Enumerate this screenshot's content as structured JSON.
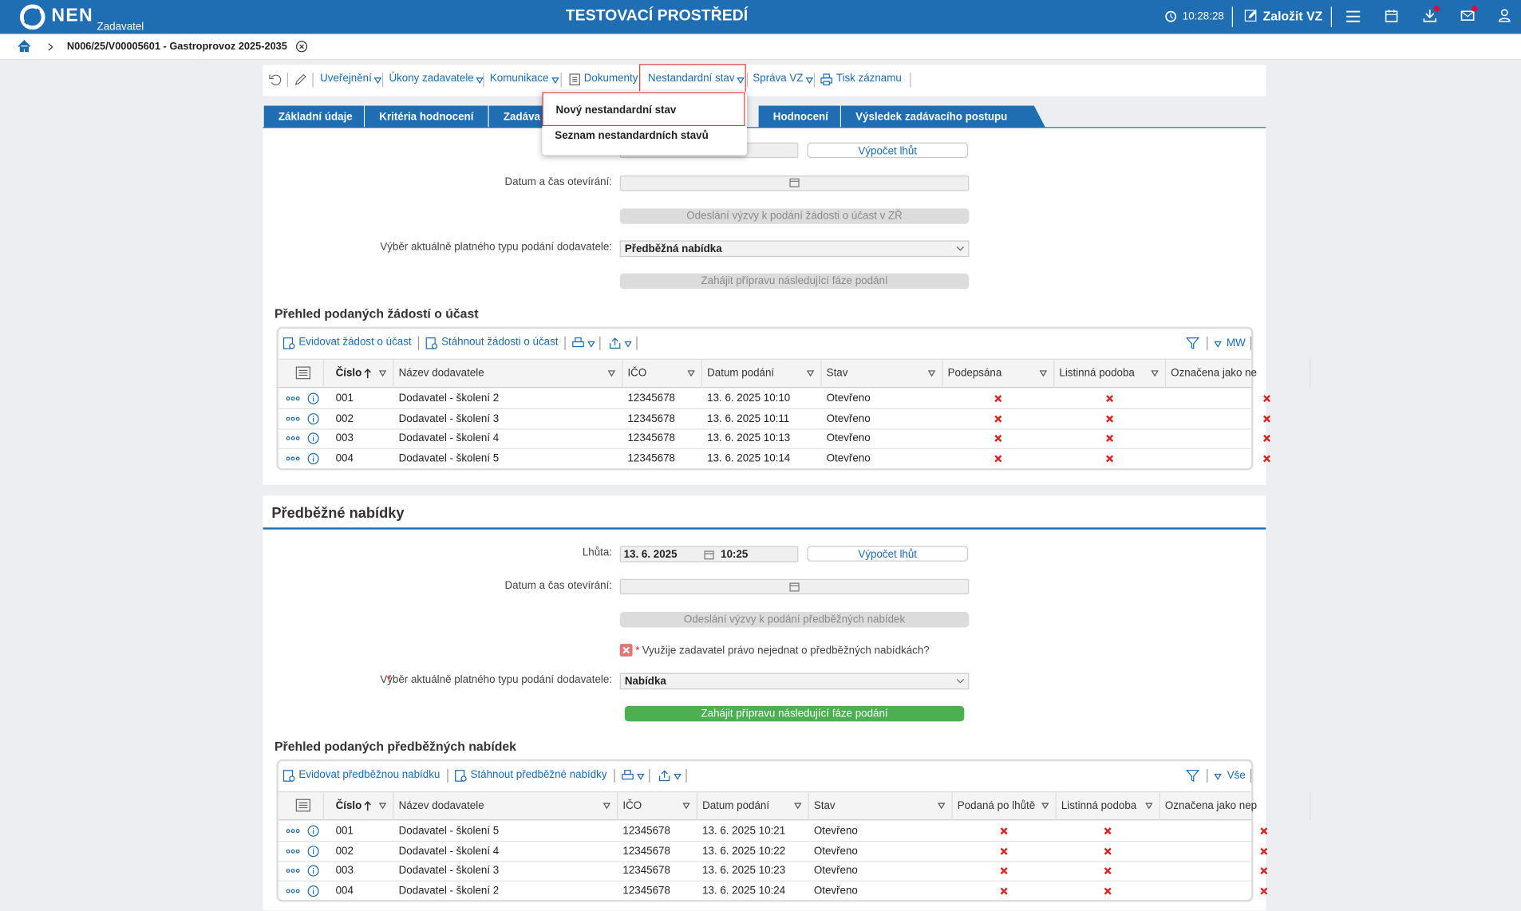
{
  "header": {
    "logo": "NEN",
    "role": "Zadavatel",
    "environment": "TESTOVACÍ PROSTŘEDÍ",
    "time": "10:28:28",
    "create_button": "Založit VZ"
  },
  "breadcrumb": {
    "item": "N006/25/V00005601 - Gastroprovoz 2025-2035"
  },
  "toolbar": {
    "items": [
      "Uveřejnění",
      "Úkony zadavatele",
      "Komunikace",
      "Dokumenty",
      "Nestandardní stav",
      "Správa VZ",
      "Tisk záznamu"
    ]
  },
  "dropdown": {
    "items": [
      "Nový nestandardní stav",
      "Seznam nestandardních stavů"
    ]
  },
  "tabs": [
    "Základní údaje",
    "Kritéria hodnocení",
    "Zadáva",
    "Hodnocení",
    "Výsledek zadávacího postupu"
  ],
  "section1": {
    "deadline_button": "Výpočet lhůt",
    "opening_label": "Datum a čas otevírání:",
    "send_button": "Odeslání výzvy k podání žádosti o účast v ZŘ",
    "type_label": "Výběr aktuálně platného typu podání dodavatele:",
    "type_value": "Předběžná nabídka",
    "next_phase_button": "Zahájit přípravu následující fáze podání",
    "table": {
      "title": "Přehled podaných žádostí o účast",
      "actions": [
        "Evidovat žádost o účast",
        "Stáhnout žádosti o účast"
      ],
      "view": "MW",
      "columns": [
        "Číslo",
        "Název dodavatele",
        "IČO",
        "Datum podání",
        "Stav",
        "Podepsána",
        "Listinná podoba",
        "Označena jako ne"
      ],
      "rows": [
        [
          "001",
          "Dodavatel - školení 2",
          "12345678",
          "13. 6. 2025 10:10",
          "Otevřeno",
          false,
          false,
          false
        ],
        [
          "002",
          "Dodavatel - školení 3",
          "12345678",
          "13. 6. 2025 10:11",
          "Otevřeno",
          false,
          false,
          false
        ],
        [
          "003",
          "Dodavatel - školení 4",
          "12345678",
          "13. 6. 2025 10:13",
          "Otevřeno",
          false,
          false,
          false
        ],
        [
          "004",
          "Dodavatel - školení 5",
          "12345678",
          "13. 6. 2025 10:14",
          "Otevřeno",
          false,
          false,
          false
        ]
      ]
    }
  },
  "section2": {
    "title": "Předběžné nabídky",
    "deadline_label": "Lhůta:",
    "deadline_date": "13. 6. 2025",
    "deadline_time": "10:25",
    "deadline_button": "Výpočet lhůt",
    "opening_label": "Datum a čas otevírání:",
    "send_button": "Odeslání výzvy k podání předběžných nabídek",
    "required_mark": "*",
    "checkbox_label": "Využije zadavatel právo nejednat o předběžných nabídkách?",
    "checkbox_checked": false,
    "type_label": "Výběr aktuálně platného typu podání dodavatele:",
    "type_value": "Nabídka",
    "next_phase_button": "Zahájit přípravu následující fáze podání",
    "table": {
      "title": "Přehled podaných předběžných nabídek",
      "actions": [
        "Evidovat předběžnou nabídku",
        "Stáhnout předběžné nabídky"
      ],
      "view": "Vše",
      "columns": [
        "Číslo",
        "Název dodavatele",
        "IČO",
        "Datum podání",
        "Stav",
        "Podaná po lhůtě",
        "Listinná podoba",
        "Označena jako nep"
      ],
      "rows": [
        [
          "001",
          "Dodavatel - školení 5",
          "12345678",
          "13. 6. 2025 10:21",
          "Otevřeno",
          false,
          false,
          false
        ],
        [
          "002",
          "Dodavatel - školení 4",
          "12345678",
          "13. 6. 2025 10:22",
          "Otevřeno",
          false,
          false,
          false
        ],
        [
          "003",
          "Dodavatel - školení 3",
          "12345678",
          "13. 6. 2025 10:23",
          "Otevřeno",
          false,
          false,
          false
        ],
        [
          "004",
          "Dodavatel - školení 2",
          "12345678",
          "13. 6. 2025 10:24",
          "Otevřeno",
          false,
          false,
          false
        ]
      ]
    }
  }
}
